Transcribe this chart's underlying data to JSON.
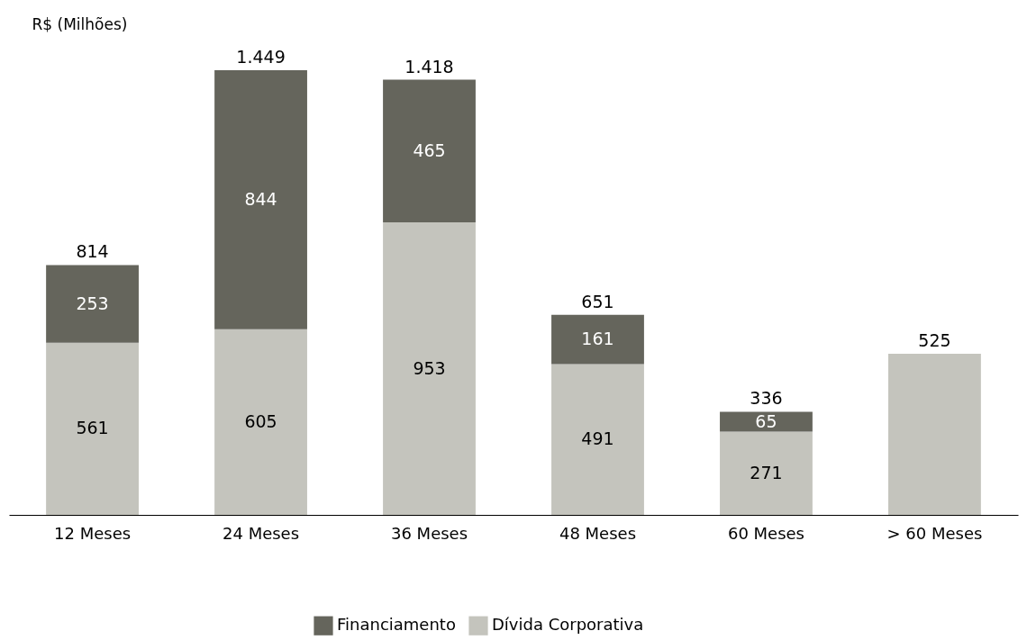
{
  "chart_data": {
    "type": "bar",
    "stacked": true,
    "ylabel": "R$ (Milhões)",
    "categories": [
      "12 Meses",
      "24 Meses",
      "36 Meses",
      "48 Meses",
      "60 Meses",
      "> 60 Meses"
    ],
    "series": [
      {
        "name": "Dívida Corporativa",
        "color": "#c4c4bd",
        "values": [
          561,
          605,
          953,
          491,
          271,
          525
        ],
        "value_labels": [
          "561",
          "605",
          "953",
          "491",
          "271",
          null
        ]
      },
      {
        "name": "Financiamento",
        "color": "#65655c",
        "values": [
          253,
          844,
          465,
          161,
          65,
          null
        ],
        "value_labels": [
          "253",
          "844",
          "465",
          "161",
          "65",
          null
        ]
      }
    ],
    "totals": [
      "814",
      "1.449",
      "1.418",
      "651",
      "336",
      "525"
    ],
    "legend": "bottom"
  }
}
